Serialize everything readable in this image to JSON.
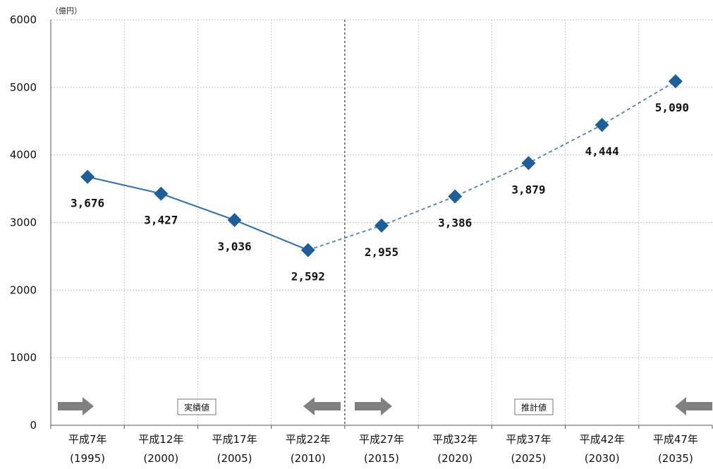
{
  "chart_data": {
    "type": "line",
    "unit_label": "（億円）",
    "categories": [
      [
        "平成7年",
        "(1995)"
      ],
      [
        "平成12年",
        "(2000)"
      ],
      [
        "平成17年",
        "(2005)"
      ],
      [
        "平成22年",
        "(2010)"
      ],
      [
        "平成27年",
        "(2015)"
      ],
      [
        "平成32年",
        "(2020)"
      ],
      [
        "平成37年",
        "(2025)"
      ],
      [
        "平成42年",
        "(2030)"
      ],
      [
        "平成47年",
        "(2035)"
      ]
    ],
    "values": [
      3676,
      3427,
      3036,
      2592,
      2955,
      3386,
      3879,
      4444,
      5090
    ],
    "data_labels": [
      "3,676",
      "3,427",
      "3,036",
      "2,592",
      "2,955",
      "3,386",
      "3,879",
      "4,444",
      "5,090"
    ],
    "actual_count": 4,
    "ylim": [
      0,
      6000
    ],
    "yticks": [
      0,
      1000,
      2000,
      3000,
      4000,
      5000,
      6000
    ],
    "region_labels": {
      "actual": "実績値",
      "estimate": "推計値"
    },
    "grid": true,
    "colors": {
      "marker": "#1f5f99",
      "actual_line": "#2a6db0",
      "estimate_line": "#5a8fa8",
      "arrow": "#808080",
      "grid": "#c8c8c8",
      "divider": "#333333"
    }
  }
}
